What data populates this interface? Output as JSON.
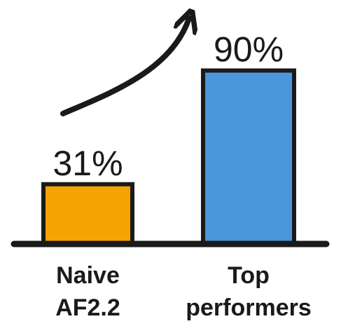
{
  "chart_data": {
    "type": "bar",
    "categories": [
      [
        "Naive",
        "AF2.2"
      ],
      [
        "Top",
        "performers"
      ]
    ],
    "values": [
      31,
      90
    ],
    "value_labels": [
      "31%",
      "90%"
    ],
    "colors": [
      "#F5A300",
      "#4C96DD"
    ],
    "outline_color": "#1a1a1a",
    "ylim": [
      0,
      100
    ],
    "annotation": "up-arrow-icon"
  }
}
